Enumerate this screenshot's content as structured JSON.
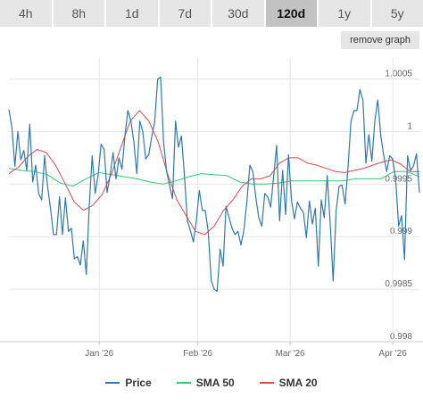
{
  "tabs": [
    {
      "label": "4h",
      "active": false
    },
    {
      "label": "8h",
      "active": false
    },
    {
      "label": "1d",
      "active": false
    },
    {
      "label": "7d",
      "active": false
    },
    {
      "label": "30d",
      "active": false
    },
    {
      "label": "120d",
      "active": true
    },
    {
      "label": "1y",
      "active": false
    },
    {
      "label": "5y",
      "active": false
    }
  ],
  "remove_graph_label": "remove graph",
  "colors": {
    "price": "#2f78b4",
    "sma50": "#33cc77",
    "sma20": "#e04a4a"
  },
  "legend": [
    {
      "key": "price",
      "label": "Price"
    },
    {
      "key": "sma50",
      "label": "SMA 50"
    },
    {
      "key": "sma20",
      "label": "SMA 20"
    }
  ],
  "chart_data": {
    "type": "line",
    "x_ticks": [
      "Jan '26",
      "Feb '26",
      "Mar '26",
      "Apr '26"
    ],
    "y_ticks": [
      "0.998",
      "0.9985",
      "0.999",
      "0.9995",
      "1",
      "1.0005"
    ],
    "ylim": [
      0.998,
      1.0007
    ],
    "grid": true,
    "legend_position": "bottom",
    "series": [
      {
        "name": "Price",
        "key": "price",
        "values": [
          1.00021,
          1.00004,
          0.99967,
          1.0,
          0.99973,
          0.99982,
          0.99963,
          1.00007,
          0.99952,
          0.99968,
          0.99941,
          0.99935,
          0.99977,
          0.99948,
          0.99926,
          0.99902,
          0.99902,
          0.99938,
          0.99902,
          0.99937,
          0.99905,
          0.99908,
          0.99879,
          0.99881,
          0.99873,
          0.99896,
          0.99864,
          0.99929,
          0.99977,
          0.99941,
          0.99959,
          0.99988,
          0.99983,
          0.99942,
          0.99958,
          0.9998,
          0.99955,
          0.99975,
          0.99964,
          0.99996,
          1.0002,
          1.0001,
          0.9999,
          0.9996,
          1.0001,
          1.0,
          0.99974,
          0.99978,
          0.99995,
          1.00009,
          1.0005,
          1.00052,
          0.9999,
          0.99962,
          0.99949,
          0.99936,
          1.0001,
          0.99985,
          0.99996,
          0.99958,
          0.99915,
          0.99906,
          0.99895,
          0.99915,
          0.99944,
          0.99925,
          0.99925,
          0.99905,
          0.99858,
          0.9985,
          0.99848,
          0.99888,
          0.99872,
          0.99929,
          0.99918,
          0.99908,
          0.99902,
          0.99905,
          0.99892,
          0.99906,
          0.99934,
          0.99968,
          0.99962,
          0.99937,
          0.99918,
          0.9991,
          0.99941,
          0.99938,
          0.99928,
          0.99958,
          0.99987,
          0.99915,
          0.99963,
          0.99921,
          0.99978,
          0.99934,
          0.99917,
          0.99933,
          0.99927,
          0.99923,
          0.99899,
          0.99934,
          0.99912,
          0.99927,
          0.99872,
          0.99935,
          0.99918,
          0.99958,
          0.99913,
          0.99858,
          0.99925,
          0.99948,
          0.99949,
          0.99931,
          0.99966,
          1.0001,
          1.0002,
          1.0002,
          1.0004,
          1.0003,
          0.9997,
          0.99997,
          0.99972,
          1.0001,
          1.0003,
          0.99996,
          0.99977,
          0.99962,
          0.99977,
          0.99974,
          0.99955,
          0.9991,
          0.9992,
          0.99878,
          0.99977,
          0.99963,
          0.99967,
          0.99979,
          0.99942
        ]
      },
      {
        "name": "SMA 50",
        "key": "sma50",
        "values": [
          0.99965,
          0.99963,
          0.99962,
          0.99959,
          0.99951,
          0.99948,
          0.99955,
          0.99961,
          0.99959,
          0.99957,
          0.99955,
          0.99952,
          0.9995,
          0.99953,
          0.99957,
          0.9996,
          0.99959,
          0.99958,
          0.99952,
          0.9995,
          0.9995,
          0.99951,
          0.99953,
          0.99953,
          0.99953,
          0.99953,
          0.99953,
          0.99955,
          0.99955,
          0.99955,
          0.99962,
          0.99962,
          0.99957
        ]
      },
      {
        "name": "SMA 20",
        "key": "sma20",
        "values": [
          0.9996,
          0.99966,
          0.99976,
          0.99983,
          0.9998,
          0.99968,
          0.99951,
          0.99933,
          0.99925,
          0.9993,
          0.9994,
          0.9996,
          0.99985,
          1.0001,
          1.0002,
          1.0001,
          0.9999,
          0.9996,
          0.99935,
          0.9992,
          0.99905,
          0.99902,
          0.9991,
          0.99925,
          0.99935,
          0.99948,
          0.99955,
          0.99955,
          0.99958,
          0.9997,
          0.99975,
          0.99975,
          0.9997,
          0.99968,
          0.99965,
          0.99962,
          0.99961,
          0.99963,
          0.99965,
          0.99968,
          0.99971,
          0.99973,
          0.99969,
          0.99962,
          0.99962
        ]
      }
    ]
  }
}
